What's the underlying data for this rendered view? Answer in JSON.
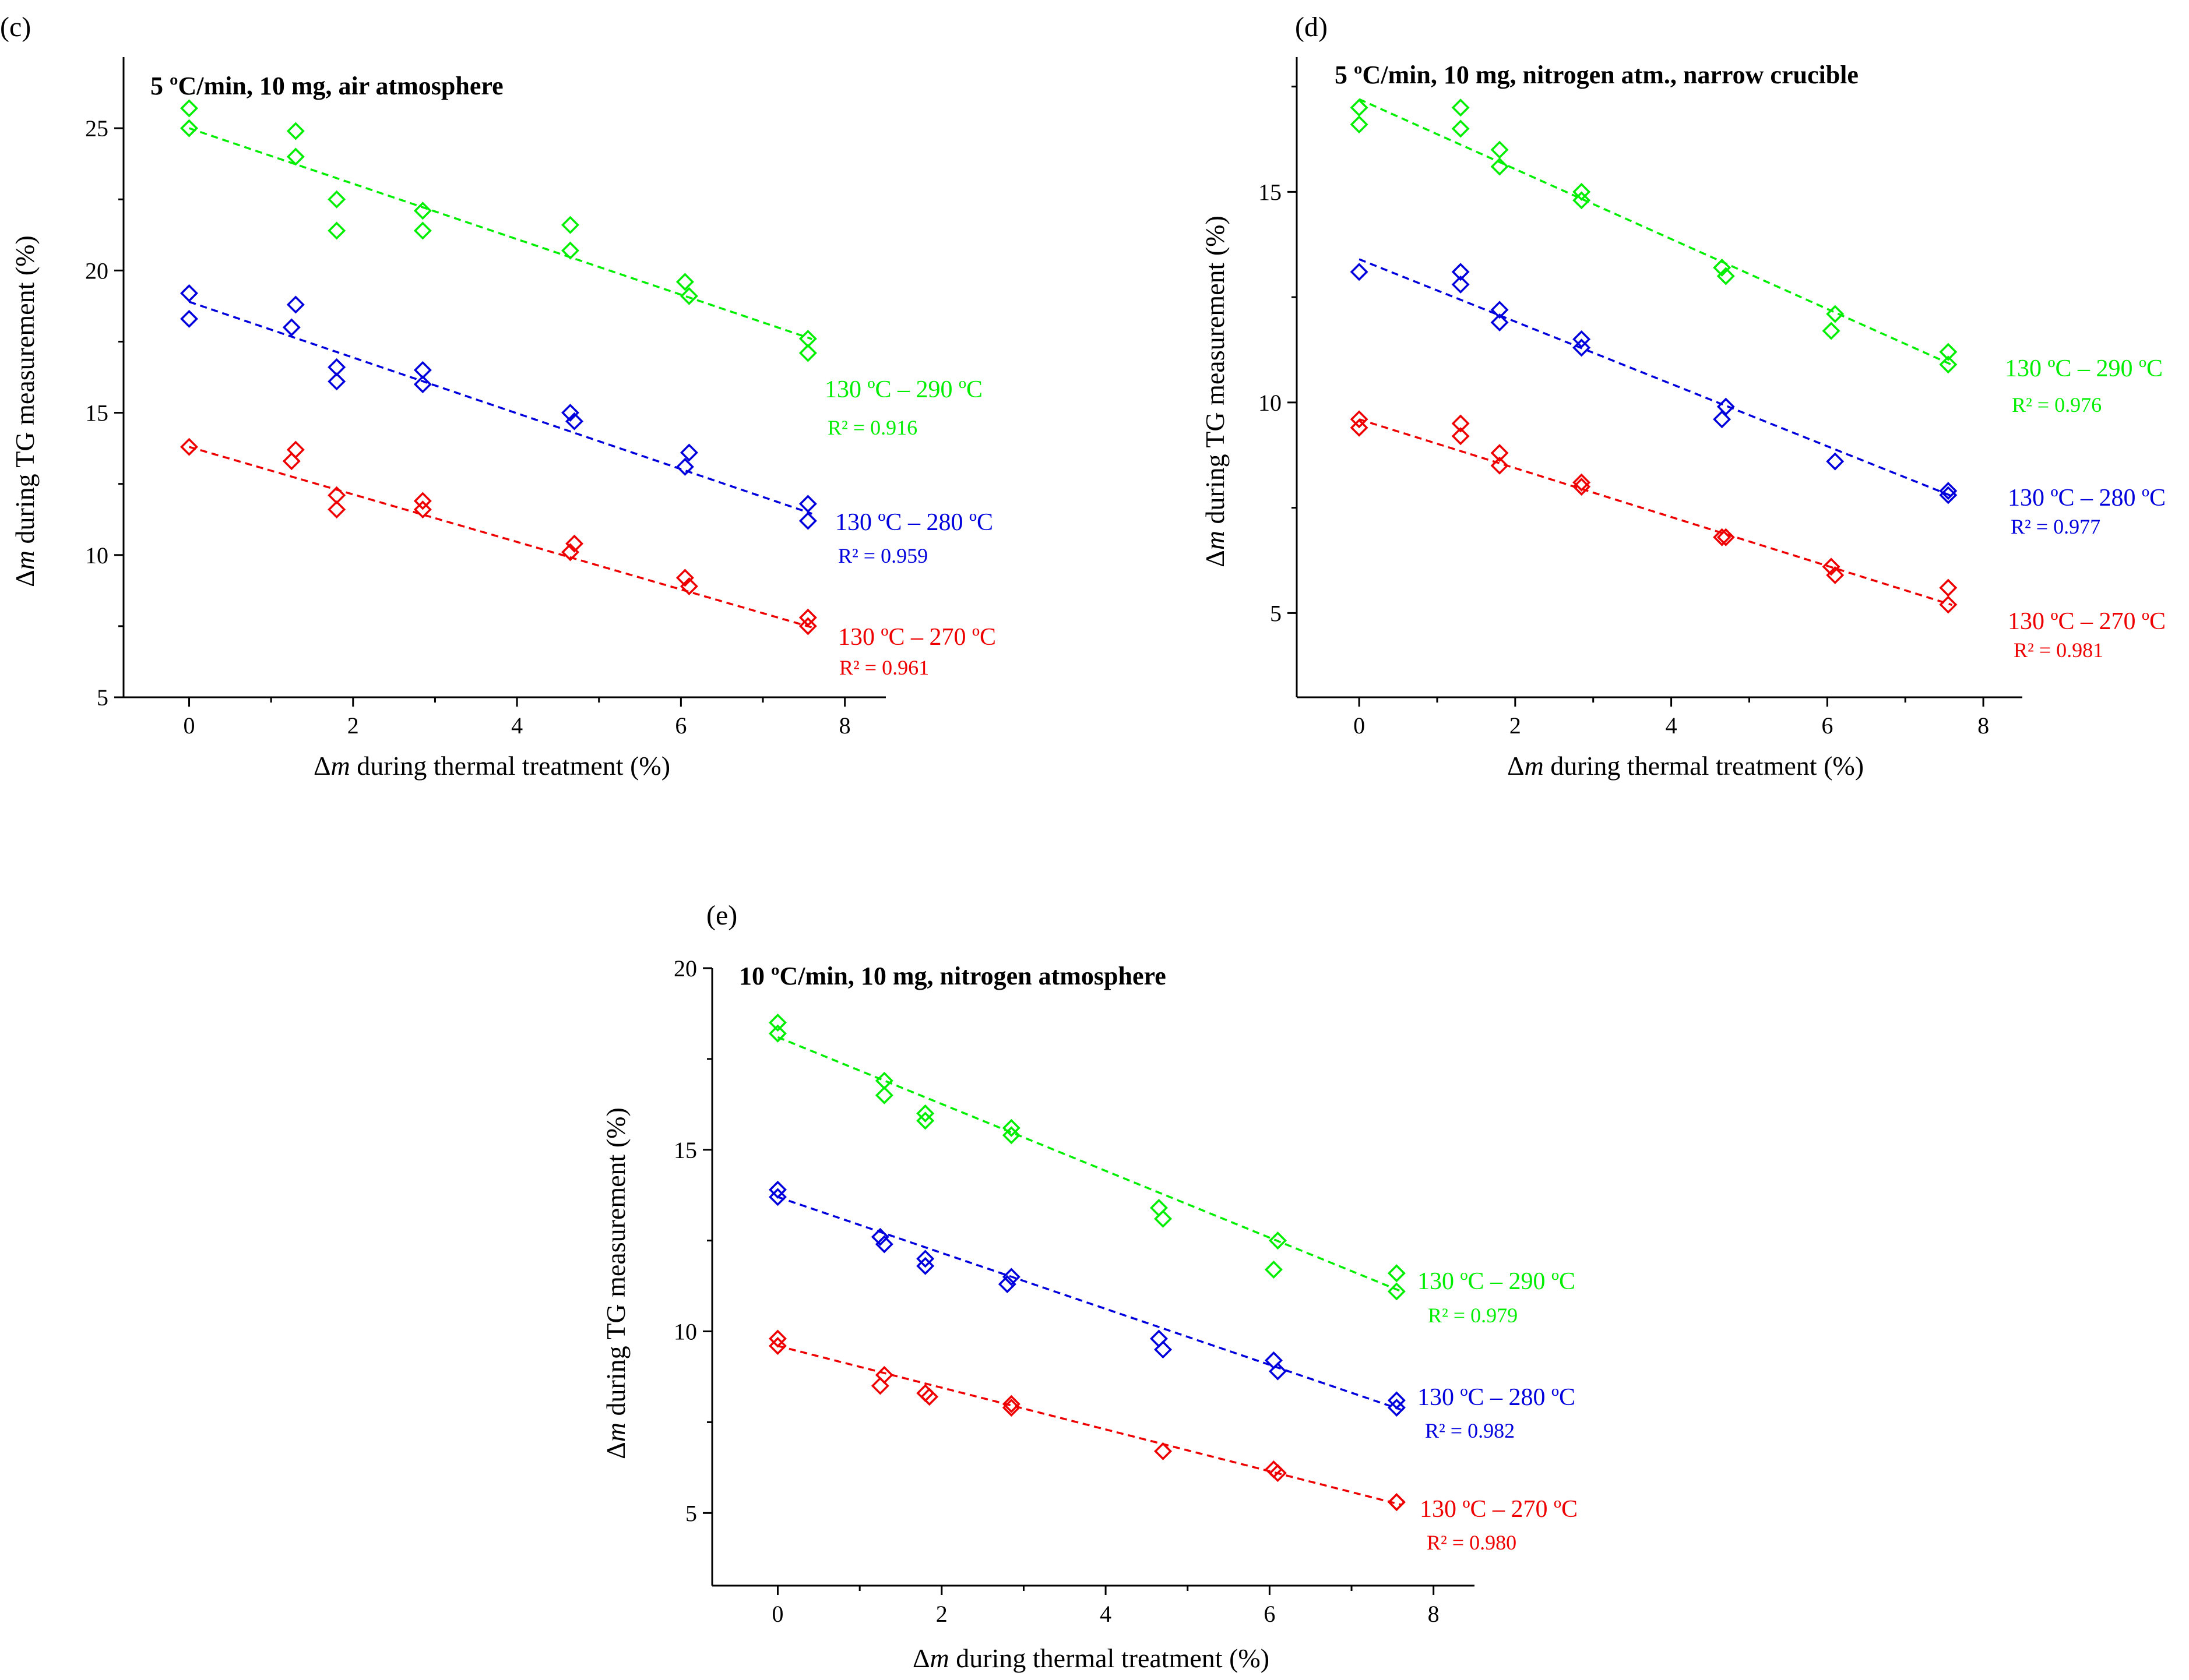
{
  "chart_data": [
    {
      "type": "scatter",
      "panel_label": "(c)",
      "title": "5 ºC/min, 10 mg, air atmosphere",
      "xlabel_prefix": "Δ",
      "xlabel_var": "m",
      "xlabel_suffix": " during thermal treatment (%)",
      "ylabel_prefix": "Δ",
      "ylabel_var": "m",
      "ylabel_suffix": " during TG measurement (%)",
      "xlim": [
        -0.8,
        8.5
      ],
      "ylim": [
        5,
        27.5
      ],
      "xticks": [
        "0",
        "2",
        "4",
        "6",
        "8"
      ],
      "yticks": [
        "5",
        "10",
        "15",
        "20",
        "25"
      ],
      "series": [
        {
          "name": "130 ºC – 290 ºC",
          "r2": "R² = 0.916",
          "color": "#00ee00",
          "fit": [
            25.0,
            -0.975
          ],
          "points": [
            [
              0,
              25.7
            ],
            [
              0,
              25.0
            ],
            [
              1.3,
              24.9
            ],
            [
              1.3,
              24.0
            ],
            [
              1.8,
              22.5
            ],
            [
              1.8,
              21.4
            ],
            [
              2.85,
              22.1
            ],
            [
              2.85,
              21.4
            ],
            [
              4.65,
              21.6
            ],
            [
              4.65,
              20.7
            ],
            [
              6.05,
              19.6
            ],
            [
              6.1,
              19.1
            ],
            [
              7.55,
              17.6
            ],
            [
              7.55,
              17.1
            ]
          ]
        },
        {
          "name": "130 ºC – 280 ºC",
          "r2": "R² = 0.959",
          "color": "#0000dd",
          "fit": [
            18.9,
            -0.98
          ],
          "points": [
            [
              0,
              19.2
            ],
            [
              0,
              18.3
            ],
            [
              1.3,
              18.8
            ],
            [
              1.25,
              18.0
            ],
            [
              1.8,
              16.6
            ],
            [
              1.8,
              16.1
            ],
            [
              2.85,
              16.5
            ],
            [
              2.85,
              16.0
            ],
            [
              4.65,
              15.0
            ],
            [
              4.7,
              14.7
            ],
            [
              6.1,
              13.6
            ],
            [
              6.05,
              13.1
            ],
            [
              7.55,
              11.8
            ],
            [
              7.55,
              11.2
            ]
          ]
        },
        {
          "name": "130 ºC – 270 ºC",
          "r2": "R² = 0.961",
          "color": "#ee0000",
          "fit": [
            13.8,
            -0.835
          ],
          "points": [
            [
              0,
              13.8
            ],
            [
              1.3,
              13.7
            ],
            [
              1.25,
              13.3
            ],
            [
              1.8,
              12.1
            ],
            [
              1.8,
              11.6
            ],
            [
              2.85,
              11.9
            ],
            [
              2.85,
              11.6
            ],
            [
              4.7,
              10.4
            ],
            [
              4.65,
              10.1
            ],
            [
              6.05,
              9.2
            ],
            [
              6.1,
              8.9
            ],
            [
              7.55,
              7.8
            ],
            [
              7.55,
              7.5
            ]
          ]
        }
      ]
    },
    {
      "type": "scatter",
      "panel_label": "(d)",
      "title": "5 ºC/min, 10 mg, nitrogen atm., narrow crucible",
      "xlabel_prefix": "Δ",
      "xlabel_var": "m",
      "xlabel_suffix": " during thermal treatment (%)",
      "ylabel_prefix": "Δ",
      "ylabel_var": "m",
      "ylabel_suffix": " during TG measurement (%)",
      "xlim": [
        -0.8,
        8.5
      ],
      "ylim": [
        3,
        18.2
      ],
      "xticks": [
        "0",
        "2",
        "4",
        "6",
        "8"
      ],
      "yticks": [
        "5",
        "10",
        "15"
      ],
      "series": [
        {
          "name": "130 ºC – 290 ºC",
          "r2": "R² = 0.976",
          "color": "#00ee00",
          "fit": [
            17.2,
            -0.83
          ],
          "points": [
            [
              0,
              17.0
            ],
            [
              0,
              16.6
            ],
            [
              1.3,
              17.0
            ],
            [
              1.3,
              16.5
            ],
            [
              1.8,
              16.0
            ],
            [
              1.8,
              15.6
            ],
            [
              2.85,
              15.0
            ],
            [
              2.85,
              14.8
            ],
            [
              4.65,
              13.2
            ],
            [
              4.7,
              13.0
            ],
            [
              6.1,
              12.1
            ],
            [
              6.05,
              11.7
            ],
            [
              7.55,
              11.2
            ],
            [
              7.55,
              10.9
            ]
          ]
        },
        {
          "name": "130 ºC – 280 ºC",
          "r2": "R² = 0.977",
          "color": "#0000dd",
          "fit": [
            13.4,
            -0.74
          ],
          "points": [
            [
              0,
              13.1
            ],
            [
              1.3,
              13.1
            ],
            [
              1.3,
              12.8
            ],
            [
              1.8,
              12.2
            ],
            [
              1.8,
              11.9
            ],
            [
              2.85,
              11.5
            ],
            [
              2.85,
              11.3
            ],
            [
              4.7,
              9.9
            ],
            [
              4.65,
              9.6
            ],
            [
              6.1,
              8.6
            ],
            [
              7.55,
              7.9
            ],
            [
              7.55,
              7.8
            ]
          ]
        },
        {
          "name": "130 ºC – 270 ºC",
          "r2": "R² = 0.981",
          "color": "#ee0000",
          "fit": [
            9.6,
            -0.58
          ],
          "points": [
            [
              0,
              9.6
            ],
            [
              0,
              9.4
            ],
            [
              1.3,
              9.5
            ],
            [
              1.3,
              9.2
            ],
            [
              1.8,
              8.8
            ],
            [
              1.8,
              8.5
            ],
            [
              2.85,
              8.1
            ],
            [
              2.85,
              8.0
            ],
            [
              4.7,
              6.8
            ],
            [
              4.65,
              6.8
            ],
            [
              6.05,
              6.1
            ],
            [
              6.1,
              5.9
            ],
            [
              7.55,
              5.6
            ],
            [
              7.55,
              5.2
            ]
          ]
        }
      ]
    },
    {
      "type": "scatter",
      "panel_label": "(e)",
      "title": "10 ºC/min, 10 mg, nitrogen atmosphere",
      "xlabel_prefix": "Δ",
      "xlabel_var": "m",
      "xlabel_suffix": " during thermal treatment (%)",
      "ylabel_prefix": "Δ",
      "ylabel_var": "m",
      "ylabel_suffix": " during TG measurement (%)",
      "xlim": [
        -0.8,
        8.5
      ],
      "ylim": [
        3,
        20
      ],
      "xticks": [
        "0",
        "2",
        "4",
        "6",
        "8"
      ],
      "yticks": [
        "5",
        "10",
        "15",
        "20"
      ],
      "series": [
        {
          "name": "130 ºC – 290 ºC",
          "r2": "R² = 0.979",
          "color": "#00ee00",
          "fit": [
            18.1,
            -0.92
          ],
          "points": [
            [
              0,
              18.5
            ],
            [
              0,
              18.2
            ],
            [
              1.3,
              16.9
            ],
            [
              1.3,
              16.5
            ],
            [
              1.8,
              16.0
            ],
            [
              1.8,
              15.8
            ],
            [
              2.85,
              15.6
            ],
            [
              2.85,
              15.4
            ],
            [
              4.65,
              13.4
            ],
            [
              4.7,
              13.1
            ],
            [
              6.1,
              12.5
            ],
            [
              6.05,
              11.7
            ],
            [
              7.55,
              11.6
            ],
            [
              7.55,
              11.1
            ]
          ]
        },
        {
          "name": "130 ºC – 280 ºC",
          "r2": "R² = 0.982",
          "color": "#0000dd",
          "fit": [
            13.7,
            -0.77
          ],
          "points": [
            [
              0,
              13.9
            ],
            [
              0,
              13.7
            ],
            [
              1.25,
              12.6
            ],
            [
              1.3,
              12.4
            ],
            [
              1.8,
              12.0
            ],
            [
              1.8,
              11.8
            ],
            [
              2.85,
              11.5
            ],
            [
              2.8,
              11.3
            ],
            [
              4.65,
              9.8
            ],
            [
              4.7,
              9.5
            ],
            [
              6.05,
              9.2
            ],
            [
              6.1,
              8.9
            ],
            [
              7.55,
              8.1
            ],
            [
              7.55,
              7.9
            ]
          ]
        },
        {
          "name": "130 ºC – 270 ºC",
          "r2": "R² = 0.980",
          "color": "#ee0000",
          "fit": [
            9.6,
            -0.575
          ],
          "points": [
            [
              0,
              9.8
            ],
            [
              0,
              9.6
            ],
            [
              1.3,
              8.8
            ],
            [
              1.25,
              8.5
            ],
            [
              1.8,
              8.3
            ],
            [
              1.85,
              8.2
            ],
            [
              2.85,
              8.0
            ],
            [
              2.85,
              7.9
            ],
            [
              4.7,
              6.7
            ],
            [
              6.05,
              6.2
            ],
            [
              6.1,
              6.1
            ],
            [
              7.55,
              5.3
            ],
            [
              7.55,
              5.3
            ]
          ]
        }
      ]
    }
  ]
}
